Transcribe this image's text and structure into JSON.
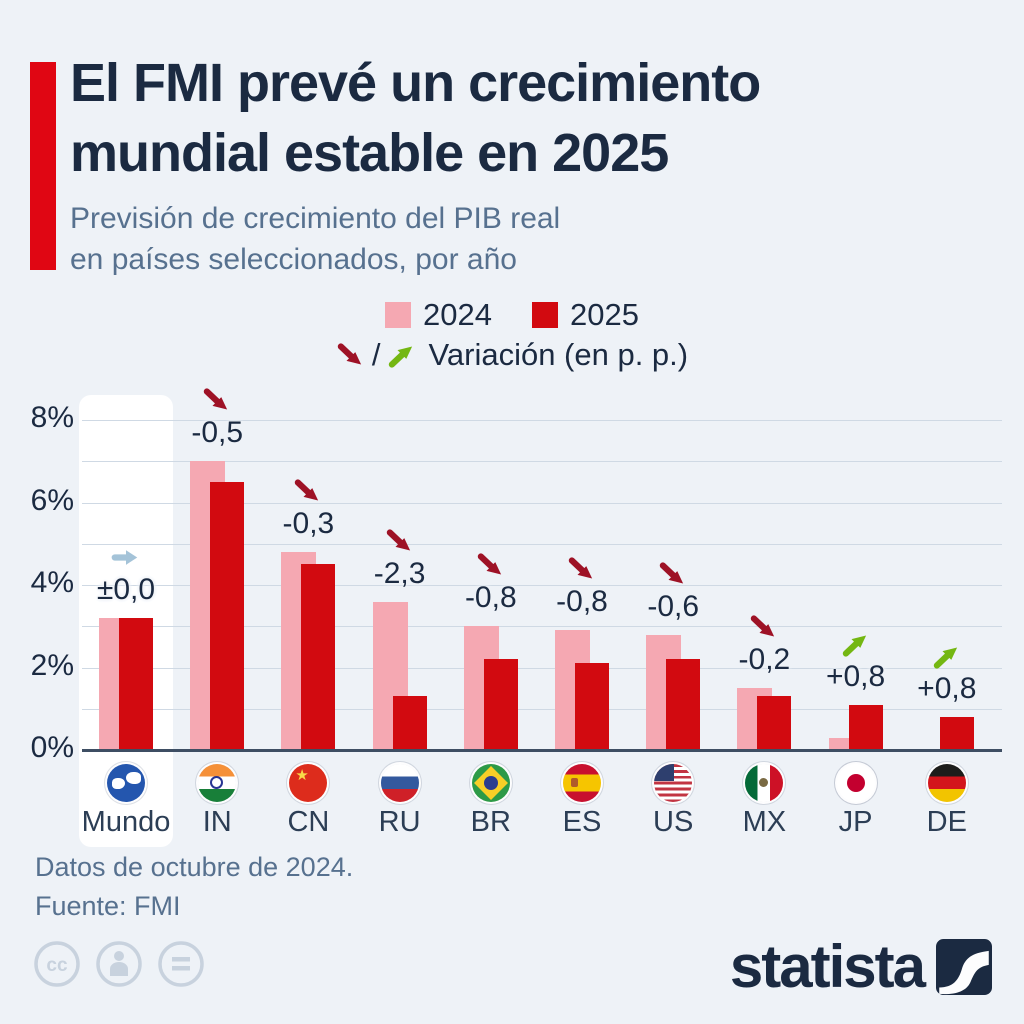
{
  "title": {
    "line1": "El FMI prevé un crecimiento",
    "line2": "mundial estable en 2025"
  },
  "subtitle": {
    "line1": "Previsión de crecimiento del PIB real",
    "line2": "en países seleccionados, por año"
  },
  "legend": {
    "s2024": "2024",
    "s2025": "2025",
    "slash": "/",
    "variation": "Variación (en p. p.)"
  },
  "chart_data": {
    "type": "bar",
    "unit": "%",
    "ylim": [
      0,
      8
    ],
    "gridline_step": 1,
    "grid": "horizontal",
    "legend_position": "top-center",
    "series_names": [
      "2024",
      "2025"
    ],
    "yticks": [
      {
        "label": "8%",
        "value": 8
      },
      {
        "label": "6%",
        "value": 6
      },
      {
        "label": "4%",
        "value": 4
      },
      {
        "label": "2%",
        "value": 2
      },
      {
        "label": "0%",
        "value": 0
      }
    ],
    "categories": [
      {
        "code": "world",
        "label": "Mundo",
        "y2024": 3.2,
        "y2025": 3.2,
        "variation": "±0,0",
        "direction": "flat",
        "highlighted": true
      },
      {
        "code": "in",
        "label": "IN",
        "y2024": 7.0,
        "y2025": 6.5,
        "variation": "-0,5",
        "direction": "down",
        "highlighted": false
      },
      {
        "code": "cn",
        "label": "CN",
        "y2024": 4.8,
        "y2025": 4.5,
        "variation": "-0,3",
        "direction": "down",
        "highlighted": false
      },
      {
        "code": "ru",
        "label": "RU",
        "y2024": 3.6,
        "y2025": 1.3,
        "variation": "-2,3",
        "direction": "down",
        "highlighted": false
      },
      {
        "code": "br",
        "label": "BR",
        "y2024": 3.0,
        "y2025": 2.2,
        "variation": "-0,8",
        "direction": "down",
        "highlighted": false
      },
      {
        "code": "es",
        "label": "ES",
        "y2024": 2.9,
        "y2025": 2.1,
        "variation": "-0,8",
        "direction": "down",
        "highlighted": false
      },
      {
        "code": "us",
        "label": "US",
        "y2024": 2.8,
        "y2025": 2.2,
        "variation": "-0,6",
        "direction": "down",
        "highlighted": false
      },
      {
        "code": "mx",
        "label": "MX",
        "y2024": 1.5,
        "y2025": 1.3,
        "variation": "-0,2",
        "direction": "down",
        "highlighted": false
      },
      {
        "code": "jp",
        "label": "JP",
        "y2024": 0.3,
        "y2025": 1.1,
        "variation": "+0,8",
        "direction": "up",
        "highlighted": false
      },
      {
        "code": "de",
        "label": "DE",
        "y2024": 0.0,
        "y2025": 0.8,
        "variation": "+0,8",
        "direction": "up",
        "highlighted": false
      }
    ]
  },
  "colors": {
    "background": "#eef2f7",
    "accent_red": "#e00613",
    "bar_2024": "#f5a8b2",
    "bar_2025": "#d20a10",
    "arrow_down": "#9e1226",
    "arrow_up": "#74b712",
    "arrow_flat": "#a4c3d8",
    "title_text": "#1b2a41",
    "muted_blue": "#57718f",
    "gridline": "#cfd9e4",
    "baseline": "#3e4e63",
    "highlight": "#ffffff"
  },
  "footer": {
    "note": "Datos de octubre de 2024.",
    "source": "Fuente: FMI"
  },
  "branding": {
    "logo_text": "statista",
    "license_icons": [
      "cc-icon",
      "attribution-person-icon",
      "equal-icon"
    ]
  }
}
